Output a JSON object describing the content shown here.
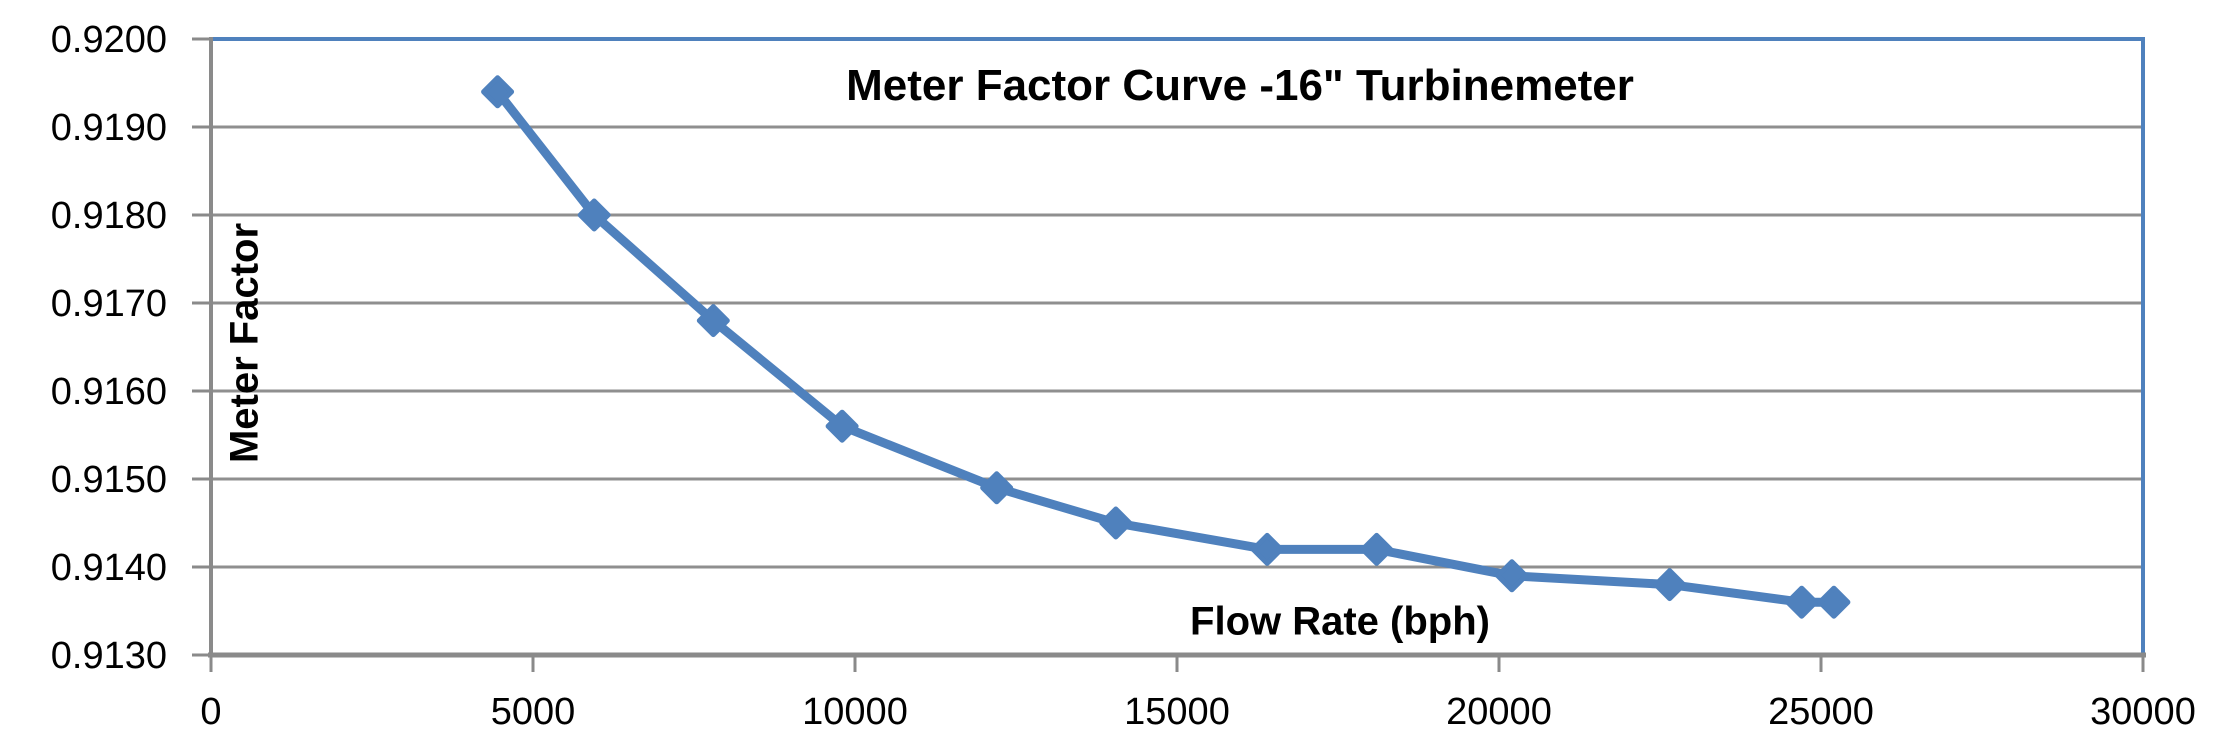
{
  "chart_data": {
    "type": "line",
    "title": "Meter Factor Curve -16\" Turbinemeter",
    "xlabel": "Flow Rate (bph)",
    "ylabel": "Meter Factor",
    "series": [
      {
        "name": "Meter Factor",
        "x": [
          4450,
          5950,
          7800,
          9800,
          12200,
          14050,
          16400,
          18100,
          20200,
          22650,
          24700,
          25200
        ],
        "y": [
          0.9194,
          0.918,
          0.9168,
          0.9156,
          0.9149,
          0.9145,
          0.9142,
          0.9142,
          0.9139,
          0.9138,
          0.9136,
          0.9136
        ]
      }
    ],
    "xlim": [
      0,
      30000
    ],
    "ylim": [
      0.913,
      0.92
    ],
    "x_ticks": [
      0,
      5000,
      10000,
      15000,
      20000,
      25000,
      30000
    ],
    "y_ticks": [
      0.913,
      0.914,
      0.915,
      0.916,
      0.917,
      0.918,
      0.919,
      0.92
    ],
    "y_tick_decimals": 4,
    "grid": "horizontal",
    "legend": "none",
    "marker": "diamond",
    "colors": {
      "line": "#4F81BD",
      "plot_border": "#4F81BD",
      "gridline": "#8F8F8F",
      "axis": "#8A8A8A",
      "tick_text": "#000000"
    }
  }
}
